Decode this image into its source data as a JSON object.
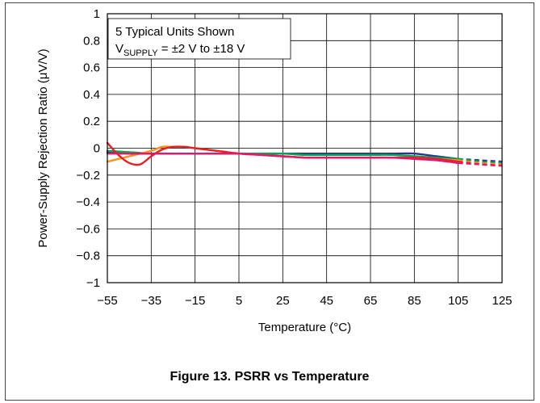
{
  "chart_data": {
    "type": "line",
    "title": "",
    "xlabel": "Temperature (°C)",
    "ylabel": "Power-Supply Rejection Ratio (μV/V)",
    "xlim": [
      -55,
      125
    ],
    "ylim": [
      -1,
      1
    ],
    "grid": true,
    "x_ticks": [
      "−55",
      "−35",
      "−15",
      "5",
      "25",
      "45",
      "65",
      "85",
      "105",
      "125"
    ],
    "y_ticks": [
      "1",
      "0.8",
      "0.6",
      "0.4",
      "0.2",
      "0",
      "−0.2",
      "−0.4",
      "−0.6",
      "−0.8",
      "−1"
    ],
    "annotation": {
      "line1": "5 Typical Units Shown",
      "line2_prefix": "V",
      "line2_sub": "SUPPLY",
      "line2_suffix": " = ±2 V to ±18 V"
    },
    "series": [
      {
        "color": "#2e3192",
        "x": [
          -55,
          -45,
          -35,
          -25,
          -15,
          -5,
          5,
          15,
          25,
          35,
          45,
          55,
          65,
          75,
          85,
          95,
          105
        ],
        "y": [
          -0.03,
          -0.04,
          -0.04,
          -0.04,
          -0.04,
          -0.04,
          -0.04,
          -0.04,
          -0.04,
          -0.04,
          -0.04,
          -0.04,
          -0.04,
          -0.04,
          -0.04,
          -0.06,
          -0.08
        ],
        "dashed_x": [
          105,
          115,
          125
        ],
        "dashed_y": [
          -0.08,
          -0.09,
          -0.1
        ]
      },
      {
        "color": "#00a651",
        "x": [
          -55,
          -45,
          -35,
          -25,
          -15,
          -5,
          5,
          15,
          25,
          35,
          45,
          55,
          65,
          75,
          85,
          95,
          105
        ],
        "y": [
          -0.02,
          -0.03,
          -0.04,
          -0.04,
          -0.04,
          -0.04,
          -0.04,
          -0.04,
          -0.04,
          -0.05,
          -0.05,
          -0.05,
          -0.05,
          -0.05,
          -0.06,
          -0.07,
          -0.08
        ],
        "dashed_x": [
          105,
          115,
          125
        ],
        "dashed_y": [
          -0.08,
          -0.1,
          -0.11
        ]
      },
      {
        "color": "#f7941d",
        "x": [
          -55,
          -45,
          -35,
          -30,
          -25,
          -20,
          -15,
          -5,
          5,
          15,
          25,
          35,
          45,
          55,
          65,
          75,
          85,
          95,
          105
        ],
        "y": [
          -0.1,
          -0.06,
          -0.02,
          0.01,
          0.01,
          0.01,
          0.0,
          -0.02,
          -0.04,
          -0.05,
          -0.06,
          -0.07,
          -0.07,
          -0.07,
          -0.07,
          -0.07,
          -0.07,
          -0.08,
          -0.09
        ],
        "dashed_x": [
          105,
          115,
          125
        ],
        "dashed_y": [
          -0.09,
          -0.11,
          -0.12
        ]
      },
      {
        "color": "#ed1c24",
        "x": [
          -55,
          -50,
          -45,
          -40,
          -35,
          -30,
          -25,
          -20,
          -15,
          -5,
          5,
          15,
          25,
          35,
          45,
          55,
          65,
          75,
          85,
          95,
          105
        ],
        "y": [
          0.04,
          -0.05,
          -0.11,
          -0.12,
          -0.06,
          -0.01,
          0.01,
          0.01,
          0.0,
          -0.02,
          -0.04,
          -0.05,
          -0.06,
          -0.07,
          -0.07,
          -0.07,
          -0.07,
          -0.07,
          -0.07,
          -0.08,
          -0.1
        ],
        "dashed_x": [
          105,
          115,
          125
        ],
        "dashed_y": [
          -0.1,
          -0.12,
          -0.13
        ]
      },
      {
        "color": "#e5176d",
        "x": [
          -55,
          -45,
          -35,
          -25,
          -15,
          -5,
          5,
          15,
          25,
          35,
          45,
          55,
          65,
          75,
          85,
          95,
          105
        ],
        "y": [
          -0.04,
          -0.04,
          -0.04,
          -0.04,
          -0.04,
          -0.04,
          -0.04,
          -0.05,
          -0.06,
          -0.07,
          -0.07,
          -0.07,
          -0.07,
          -0.07,
          -0.08,
          -0.09,
          -0.11
        ],
        "dashed_x": [
          105,
          115,
          125
        ],
        "dashed_y": [
          -0.11,
          -0.12,
          -0.13
        ]
      }
    ]
  },
  "caption": "Figure 13. PSRR vs Temperature"
}
